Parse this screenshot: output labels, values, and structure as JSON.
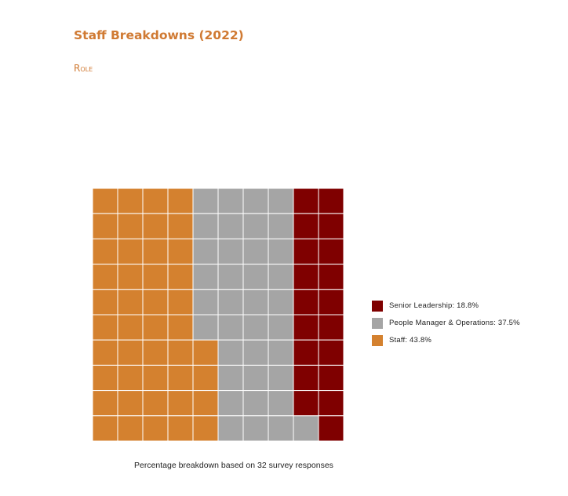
{
  "page": {
    "title": "Staff Breakdowns (2022)",
    "section": "Role"
  },
  "chart_data": {
    "type": "waffle",
    "grid": {
      "rows": 10,
      "cols": 10
    },
    "fill_order": "top-to-bottom, right-to-left",
    "series": [
      {
        "name": "Senior Leadership",
        "percent": 18.8,
        "cells": 19,
        "color": "#7f0000",
        "label": "Senior Leadership: 18.8%"
      },
      {
        "name": "People Manager & Operations",
        "percent": 37.5,
        "cells": 37,
        "color": "#a5a5a5",
        "label": "People Manager & Operations: 37.5%"
      },
      {
        "name": "Staff",
        "percent": 43.8,
        "cells": 44,
        "color": "#d4812f",
        "label": "Staff: 43.8%"
      }
    ],
    "legend_position": "right",
    "caption": "Percentage breakdown based on 32 survey responses"
  }
}
